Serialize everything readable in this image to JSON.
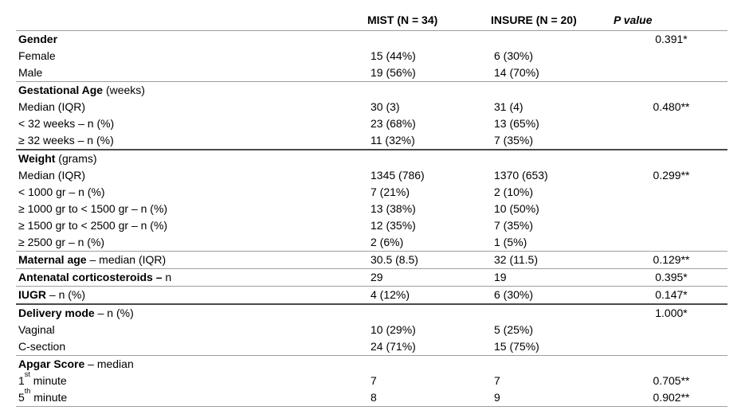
{
  "table": {
    "columns": {
      "label": "",
      "mist": "MIST (N = 34)",
      "insure": "INSURE (N = 20)",
      "p": "P value"
    },
    "rows": [
      {
        "b": "Gender",
        "t": "",
        "p": "0.391*"
      },
      {
        "t": "Female",
        "mist": "15 (44%)",
        "insure": "6 (30%)"
      },
      {
        "t": "Male",
        "mist": "19 (56%)",
        "insure": "14 (70%)"
      },
      {
        "b": "Gestational Age",
        "t": " (weeks)",
        "top": "gray"
      },
      {
        "t": "Median (IQR)",
        "mist": "30 (3)",
        "insure": "31 (4)",
        "p": "0.480**"
      },
      {
        "t": "< 32 weeks – n (%)",
        "mist": "23 (68%)",
        "insure": "13 (65%)"
      },
      {
        "t": "≥ 32 weeks – n (%)",
        "mist": "11 (32%)",
        "insure": "7 (35%)"
      },
      {
        "b": "Weight",
        "t": " (grams)",
        "top": "dark"
      },
      {
        "t": "Median (IQR)",
        "mist": "1345 (786)",
        "insure": "1370 (653)",
        "p": "0.299**"
      },
      {
        "t": "< 1000 gr – n (%)",
        "mist": "7 (21%)",
        "insure": "2 (10%)"
      },
      {
        "t": "≥ 1000 gr to < 1500 gr – n (%)",
        "mist": "13 (38%)",
        "insure": "10 (50%)"
      },
      {
        "t": "≥ 1500 gr to < 2500 gr – n (%)",
        "mist": "12 (35%)",
        "insure": "7 (35%)"
      },
      {
        "t": "≥ 2500 gr – n (%)",
        "mist": "2 (6%)",
        "insure": "1 (5%)"
      },
      {
        "b": "Maternal age",
        "t": " – median (IQR)",
        "mist": "30.5 (8.5)",
        "insure": "32 (11.5)",
        "p": "0.129**",
        "top": "gray"
      },
      {
        "b": "Antenatal corticosteroids –",
        "t": " n",
        "mist": "29",
        "insure": "19",
        "p": "0.395*",
        "top": "gray"
      },
      {
        "b": "IUGR",
        "t": " – n (%)",
        "mist": "4 (12%)",
        "insure": "6 (30%)",
        "p": "0.147*",
        "top": "gray"
      },
      {
        "b": "Delivery mode",
        "t": " – n (%)",
        "p": "1.000*",
        "top": "dark"
      },
      {
        "t": "Vaginal",
        "mist": "10 (29%)",
        "insure": "5 (25%)"
      },
      {
        "t": "C-section",
        "mist": "24 (71%)",
        "insure": "15 (75%)"
      },
      {
        "b": "Apgar Score",
        "t": " – median",
        "top": "gray"
      },
      {
        "t": "1",
        "sup": "st",
        "t2": " minute",
        "mist": "7",
        "insure": "7",
        "p": "0.705**"
      },
      {
        "t": "5",
        "sup": "th",
        "t2": " minute",
        "mist": "8",
        "insure": "9",
        "p": "0.902**",
        "bottom": "gray"
      }
    ]
  }
}
